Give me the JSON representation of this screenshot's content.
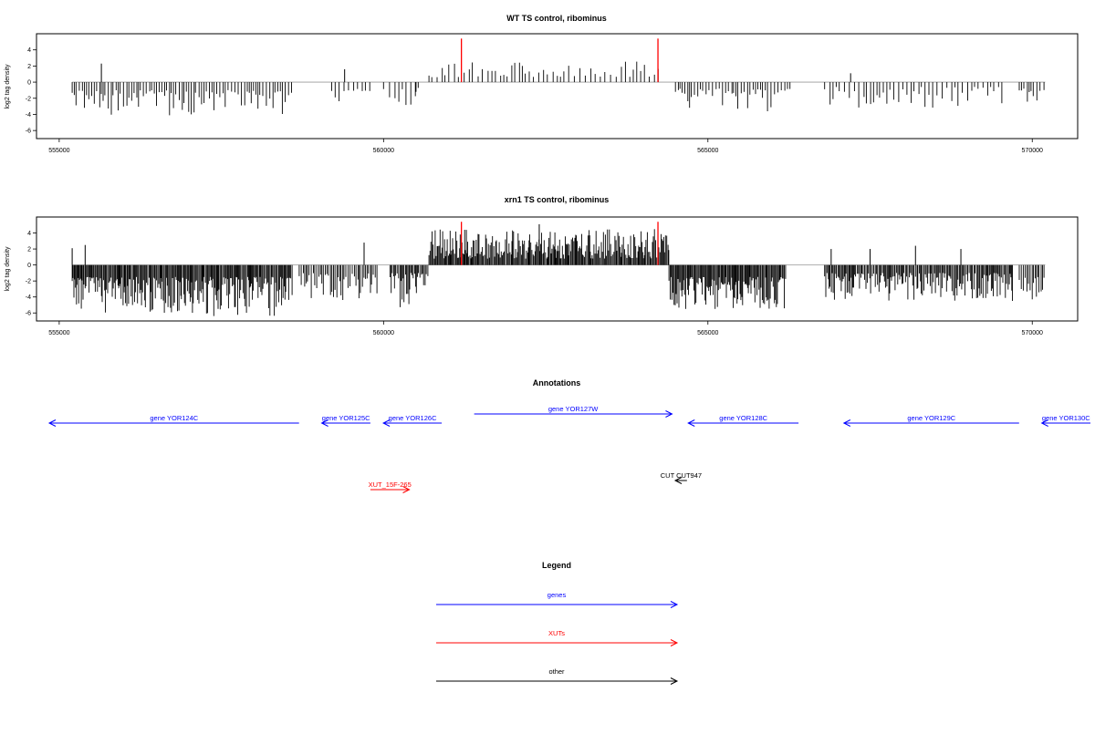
{
  "chart_data": [
    {
      "type": "bar",
      "title": "WT TS control, ribominus",
      "ylabel": "log2 tag density",
      "xlabel": "",
      "xlim": [
        554650,
        570700
      ],
      "ylim": [
        -7,
        6
      ],
      "x_ticks": [
        "555000",
        "560000",
        "565000",
        "570000"
      ],
      "x_tick_values": [
        555000,
        560000,
        565000,
        570000
      ],
      "y_ticks": [
        "-6",
        "-4",
        "-2",
        "0",
        "2",
        "4"
      ],
      "y_tick_values": [
        -6,
        -4,
        -2,
        0,
        2,
        4
      ],
      "baseline": 0,
      "bar_color": "#000000",
      "highlight_color": "#ff0000",
      "highlight_positions": [
        561200,
        564230
      ],
      "highlight_height": 5.4,
      "segments": [
        {
          "start": 555200,
          "end": 557100,
          "sign": -1,
          "min_depth": 1.0,
          "max_depth": 4.2,
          "spacing": 40,
          "seed": 11
        },
        {
          "start": 557100,
          "end": 558600,
          "sign": -1,
          "min_depth": 1.0,
          "max_depth": 4.0,
          "spacing": 45,
          "seed": 17
        },
        {
          "start": 559200,
          "end": 559800,
          "sign": -1,
          "min_depth": 0.8,
          "max_depth": 3.5,
          "spacing": 60,
          "seed": 23
        },
        {
          "start": 560000,
          "end": 560600,
          "sign": -1,
          "min_depth": 0.6,
          "max_depth": 3.0,
          "spacing": 70,
          "seed": 29
        },
        {
          "start": 560700,
          "end": 564300,
          "sign": 1,
          "min_depth": 0.6,
          "max_depth": 2.6,
          "spacing": 65,
          "seed": 31
        },
        {
          "start": 564500,
          "end": 566300,
          "sign": -1,
          "min_depth": 0.8,
          "max_depth": 4.5,
          "spacing": 40,
          "seed": 37
        },
        {
          "start": 566800,
          "end": 569600,
          "sign": -1,
          "min_depth": 0.6,
          "max_depth": 3.2,
          "spacing": 60,
          "seed": 41
        },
        {
          "start": 569800,
          "end": 570200,
          "sign": -1,
          "min_depth": 0.8,
          "max_depth": 2.8,
          "spacing": 45,
          "seed": 43
        }
      ],
      "extra_bars": [
        {
          "x": 555650,
          "y": 2.3
        },
        {
          "x": 559400,
          "y": 1.6
        },
        {
          "x": 567200,
          "y": 1.1
        },
        {
          "x": 560500,
          "y": -1.2
        }
      ]
    },
    {
      "type": "bar",
      "title": "xrn1 TS control, ribominus",
      "ylabel": "log2 tag density",
      "xlabel": "",
      "xlim": [
        554650,
        570700
      ],
      "ylim": [
        -7,
        6
      ],
      "x_ticks": [
        "555000",
        "560000",
        "565000",
        "570000"
      ],
      "x_tick_values": [
        555000,
        560000,
        565000,
        570000
      ],
      "y_ticks": [
        "-6",
        "-4",
        "-2",
        "0",
        "2",
        "4"
      ],
      "y_tick_values": [
        -6,
        -4,
        -2,
        0,
        2,
        4
      ],
      "baseline": 0,
      "bar_color": "#000000",
      "highlight_color": "#ff0000",
      "highlight_positions": [
        561200,
        564230
      ],
      "highlight_height": 5.4,
      "segments": [
        {
          "start": 555200,
          "end": 557100,
          "sign": -1,
          "min_depth": 1.5,
          "max_depth": 6.0,
          "spacing": 15,
          "seed": 53
        },
        {
          "start": 557100,
          "end": 558600,
          "sign": -1,
          "min_depth": 1.5,
          "max_depth": 6.5,
          "spacing": 15,
          "seed": 59
        },
        {
          "start": 558700,
          "end": 559900,
          "sign": -1,
          "min_depth": 1.0,
          "max_depth": 4.5,
          "spacing": 25,
          "seed": 61
        },
        {
          "start": 560100,
          "end": 560700,
          "sign": -1,
          "min_depth": 1.0,
          "max_depth": 5.5,
          "spacing": 20,
          "seed": 67
        },
        {
          "start": 560700,
          "end": 564400,
          "sign": 1,
          "min_depth": 0.8,
          "max_depth": 4.5,
          "spacing": 15,
          "seed": 71
        },
        {
          "start": 564400,
          "end": 566200,
          "sign": -1,
          "min_depth": 1.5,
          "max_depth": 5.5,
          "spacing": 15,
          "seed": 73
        },
        {
          "start": 566800,
          "end": 569700,
          "sign": -1,
          "min_depth": 1.0,
          "max_depth": 4.5,
          "spacing": 18,
          "seed": 79
        },
        {
          "start": 569800,
          "end": 570200,
          "sign": -1,
          "min_depth": 1.5,
          "max_depth": 4.5,
          "spacing": 25,
          "seed": 83
        }
      ],
      "extra_bars": [
        {
          "x": 555200,
          "y": 2.1
        },
        {
          "x": 555400,
          "y": 2.5
        },
        {
          "x": 559700,
          "y": 2.8
        },
        {
          "x": 562400,
          "y": 5.1
        },
        {
          "x": 567500,
          "y": 2.0
        },
        {
          "x": 568200,
          "y": 2.4
        },
        {
          "x": 568900,
          "y": 2.0
        },
        {
          "x": 566900,
          "y": 2.0
        }
      ]
    }
  ],
  "annotations": {
    "title": "Annotations",
    "features": [
      {
        "label": "gene YOR124C",
        "start": 554650,
        "end": 558500,
        "strand": "-",
        "color": "#0000ff",
        "row": 1
      },
      {
        "label": "gene YOR125C",
        "start": 558850,
        "end": 559600,
        "strand": "-",
        "color": "#0000ff",
        "row": 1
      },
      {
        "label": "gene YOR126C",
        "start": 559800,
        "end": 560700,
        "strand": "-",
        "color": "#0000ff",
        "row": 1
      },
      {
        "label": "gene YOR127W",
        "start": 561200,
        "end": 564250,
        "strand": "+",
        "color": "#0000ff",
        "row": 0
      },
      {
        "label": "gene YOR128C",
        "start": 564500,
        "end": 566200,
        "strand": "-",
        "color": "#0000ff",
        "row": 1
      },
      {
        "label": "gene YOR129C",
        "start": 566900,
        "end": 569600,
        "strand": "-",
        "color": "#0000ff",
        "row": 1
      },
      {
        "label": "gene YOR130C",
        "start": 569950,
        "end": 570700,
        "strand": "-",
        "color": "#0000ff",
        "row": 1
      },
      {
        "label": "XUT_15F-265",
        "start": 559600,
        "end": 560200,
        "strand": "+",
        "color": "#ff0000",
        "row": 3
      },
      {
        "label": "CUT CUT947",
        "start": 564300,
        "end": 564480,
        "strand": "-",
        "color": "#000000",
        "row": 2
      }
    ]
  },
  "legend": {
    "title": "Legend",
    "items": [
      {
        "label": "genes",
        "color": "#0000ff"
      },
      {
        "label": "XUTs",
        "color": "#ff0000"
      },
      {
        "label": "other",
        "color": "#000000"
      }
    ]
  }
}
